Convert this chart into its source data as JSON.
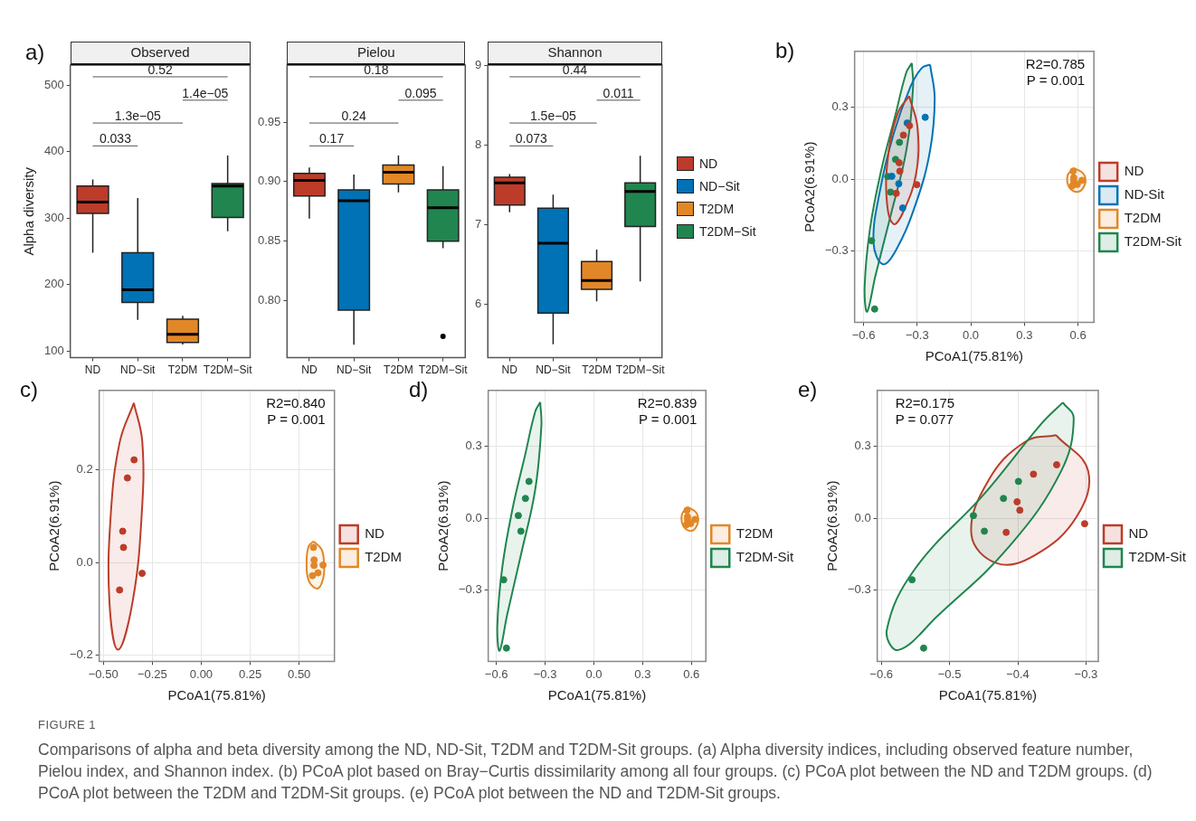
{
  "chart_data": [
    {
      "type": "box",
      "title": "Observed",
      "ylabel": "Alpha diversity",
      "categories": [
        "ND",
        "ND−Sit",
        "T2DM",
        "T2DM−Sit"
      ],
      "ylim": [
        90,
        530
      ],
      "yticks": [
        100,
        200,
        300,
        400,
        500
      ],
      "grid": false,
      "legend": false,
      "series": [
        {
          "color": "#bc3c29",
          "boxes": [
            {
              "low": 248,
              "q1": 307,
              "median": 324,
              "q3": 348,
              "high": 358
            },
            null,
            null,
            null
          ]
        },
        {
          "color": "#0072b5",
          "boxes": [
            null,
            {
              "low": 147,
              "q1": 173,
              "median": 192,
              "q3": 248,
              "high": 330
            },
            null,
            null
          ]
        },
        {
          "color": "#e18727",
          "boxes": [
            null,
            null,
            {
              "low": 110,
              "q1": 113,
              "median": 125,
              "q3": 148,
              "high": 153
            },
            null
          ]
        },
        {
          "color": "#20854e",
          "boxes": [
            null,
            null,
            null,
            {
              "low": 280,
              "q1": 301,
              "median": 348,
              "q3": 352,
              "high": 394
            }
          ]
        }
      ],
      "annotations": [
        "0.52",
        "1.4e−05",
        "1.3e−05",
        "0.033",
        "a)"
      ]
    },
    {
      "type": "box",
      "title": "Pielou",
      "categories": [
        "ND",
        "ND−Sit",
        "T2DM",
        "T2DM−Sit"
      ],
      "ylim": [
        0.752,
        0.998
      ],
      "yticks": [
        {
          "value": 0.8,
          "label": "0.80"
        },
        0.85,
        {
          "value": 0.9,
          "label": "0.90"
        },
        0.95
      ],
      "grid": false,
      "legend": false,
      "series": [
        {
          "color": "#bc3c29",
          "boxes": [
            {
              "low": 0.869,
              "q1": 0.888,
              "median": 0.901,
              "q3": 0.907,
              "high": 0.912
            },
            null,
            null,
            null
          ]
        },
        {
          "color": "#0072b5",
          "boxes": [
            null,
            {
              "low": 0.763,
              "q1": 0.792,
              "median": 0.884,
              "q3": 0.893,
              "high": 0.906
            },
            null,
            null
          ]
        },
        {
          "color": "#e18727",
          "boxes": [
            null,
            null,
            {
              "low": 0.891,
              "q1": 0.898,
              "median": 0.908,
              "q3": 0.914,
              "high": 0.922
            },
            null
          ]
        },
        {
          "color": "#20854e",
          "boxes": [
            null,
            null,
            null,
            {
              "low": 0.844,
              "q1": 0.85,
              "median": 0.878,
              "q3": 0.893,
              "high": 0.913,
              "outliers": [
                0.77
              ]
            }
          ]
        }
      ],
      "annotations": [
        "0.18",
        "0.095",
        "0.24",
        "0.17"
      ]
    },
    {
      "type": "box",
      "title": "Shannon",
      "categories": [
        "ND",
        "ND−Sit",
        "T2DM",
        "T2DM−Sit"
      ],
      "ylim": [
        5.33,
        9.01
      ],
      "yticks": [
        6,
        7,
        8,
        9
      ],
      "grid": false,
      "legend": "right",
      "series": [
        {
          "name": "ND",
          "color": "#bc3c29",
          "boxes": [
            {
              "low": 7.16,
              "q1": 7.25,
              "median": 7.53,
              "q3": 7.6,
              "high": 7.64
            },
            null,
            null,
            null
          ]
        },
        {
          "name": "ND−Sit",
          "color": "#0072b5",
          "boxes": [
            null,
            {
              "low": 5.5,
              "q1": 5.89,
              "median": 6.77,
              "q3": 7.21,
              "high": 7.38
            },
            null,
            null
          ]
        },
        {
          "name": "T2DM",
          "color": "#e18727",
          "boxes": [
            null,
            null,
            {
              "low": 6.04,
              "q1": 6.19,
              "median": 6.3,
              "q3": 6.54,
              "high": 6.69
            },
            null
          ]
        },
        {
          "name": "T2DM−Sit",
          "color": "#20854e",
          "boxes": [
            null,
            null,
            null,
            {
              "low": 6.29,
              "q1": 6.98,
              "median": 7.42,
              "q3": 7.53,
              "high": 7.87
            }
          ]
        }
      ],
      "annotations": [
        "0.44",
        "0.011",
        "1.5e−05",
        "0.073"
      ]
    },
    {
      "type": "scatter",
      "xlabel": "PCoA1(75.81%)",
      "ylabel": "PCoA2(6.91%)",
      "xlim": [
        -0.65,
        0.689
      ],
      "ylim": [
        -0.595,
        0.531
      ],
      "xticks": [
        {
          "value": -0.6,
          "label": "−0.6"
        },
        {
          "value": -0.3,
          "label": "−0.3"
        },
        {
          "value": 0,
          "label": "0.0"
        },
        0.3,
        0.6
      ],
      "yticks": [
        {
          "value": -0.3,
          "label": "−0.3"
        },
        {
          "value": 0,
          "label": "0.0"
        },
        0.3
      ],
      "grid": true,
      "legend": "right",
      "marker": "circle",
      "series": [
        {
          "name": "ND",
          "color": "#bc3c29",
          "x": [
            -0.343,
            -0.377,
            -0.401,
            -0.397,
            -0.302,
            -0.417
          ],
          "values": [
            0.222,
            0.183,
            0.068,
            0.033,
            -0.023,
            -0.059
          ]
        },
        {
          "name": "ND-Sit",
          "color": "#0072b5",
          "x": [
            -0.255,
            -0.356,
            -0.442,
            -0.403,
            -0.381
          ],
          "values": [
            0.257,
            0.233,
            0.012,
            -0.019,
            -0.12
          ]
        },
        {
          "name": "T2DM",
          "color": "#e18727",
          "x": [
            0.573,
            0.576,
            0.576,
            0.622,
            0.596,
            0.568
          ],
          "values": [
            0.033,
            0.006,
            -0.006,
            -0.005,
            -0.022,
            -0.028
          ]
        },
        {
          "name": "T2DM-Sit",
          "color": "#20854e",
          "x": [
            -0.399,
            -0.421,
            -0.465,
            -0.449,
            -0.555,
            -0.538
          ],
          "values": [
            0.153,
            0.082,
            0.011,
            -0.054,
            -0.256,
            -0.54
          ]
        },
        {
          "type": "area",
          "color": "#bc3c29",
          "x": [
            -0.345,
            -0.298,
            -0.306,
            -0.377,
            -0.431,
            -0.469,
            -0.463,
            -0.408,
            -0.345
          ],
          "values": [
            0.345,
            0.214,
            0.022,
            -0.135,
            -0.187,
            -0.099,
            0.094,
            0.275,
            0.345
          ],
          "marker": "none"
        },
        {
          "type": "area",
          "color": "#0072b5",
          "x": [
            -0.228,
            -0.202,
            -0.228,
            -0.306,
            -0.416,
            -0.491,
            -0.544,
            -0.509,
            -0.431,
            -0.338,
            -0.275,
            -0.228
          ],
          "values": [
            0.476,
            0.335,
            0.118,
            -0.099,
            -0.292,
            -0.354,
            -0.267,
            -0.051,
            0.19,
            0.383,
            0.461,
            0.476
          ],
          "marker": "none"
        },
        {
          "type": "area",
          "color": "#e18727",
          "x": [
            0.577,
            0.631,
            0.639,
            0.6,
            0.55,
            0.542,
            0.577
          ],
          "values": [
            0.046,
            0.022,
            -0.02,
            -0.053,
            -0.033,
            0.016,
            0.046
          ],
          "marker": "none"
        },
        {
          "type": "area",
          "color": "#20854e",
          "x": [
            -0.33,
            -0.323,
            -0.361,
            -0.447,
            -0.533,
            -0.58,
            -0.594,
            -0.564,
            -0.502,
            -0.423,
            -0.361,
            -0.33
          ],
          "values": [
            0.482,
            0.383,
            0.118,
            -0.147,
            -0.4,
            -0.551,
            -0.448,
            -0.207,
            0.034,
            0.263,
            0.443,
            0.482
          ],
          "marker": "none"
        }
      ],
      "annotations": [
        "b)",
        "R2=0.785",
        "P = 0.001"
      ]
    },
    {
      "type": "scatter",
      "xlabel": "PCoA1(75.81%)",
      "ylabel": "PCoA2(6.91%)",
      "xlim": [
        -0.521,
        0.68
      ],
      "ylim": [
        -0.213,
        0.372
      ],
      "xticks": [
        {
          "value": -0.5,
          "label": "−0.50"
        },
        {
          "value": -0.25,
          "label": "−0.25"
        },
        {
          "value": 0,
          "label": "0.00"
        },
        0.25,
        {
          "value": 0.5,
          "label": "0.50"
        }
      ],
      "yticks": [
        {
          "value": -0.2,
          "label": "−0.2"
        },
        {
          "value": 0,
          "label": "0.0"
        },
        0.2
      ],
      "grid": true,
      "legend": "right",
      "marker": "circle",
      "series": [
        {
          "name": "ND",
          "color": "#bc3c29",
          "x": [
            -0.343,
            -0.377,
            -0.401,
            -0.397,
            -0.302,
            -0.417
          ],
          "values": [
            0.222,
            0.183,
            0.068,
            0.033,
            -0.023,
            -0.059
          ]
        },
        {
          "name": "T2DM",
          "color": "#e18727",
          "x": [
            0.573,
            0.576,
            0.576,
            0.622,
            0.596,
            0.568
          ],
          "values": [
            0.033,
            0.006,
            -0.006,
            -0.005,
            -0.022,
            -0.028
          ]
        },
        {
          "type": "area",
          "color": "#bc3c29",
          "x": [
            -0.344,
            -0.301,
            -0.304,
            -0.35,
            -0.425,
            -0.469,
            -0.462,
            -0.416,
            -0.344
          ],
          "values": [
            0.345,
            0.261,
            0.104,
            -0.083,
            -0.188,
            -0.083,
            0.104,
            0.261,
            0.345
          ],
          "marker": "none"
        },
        {
          "type": "area",
          "color": "#e18727",
          "x": [
            0.573,
            0.614,
            0.627,
            0.623,
            0.594,
            0.549,
            0.538,
            0.549,
            0.573
          ],
          "values": [
            0.046,
            0.029,
            -0.002,
            -0.033,
            -0.056,
            -0.039,
            0.004,
            0.036,
            0.046
          ],
          "marker": "none"
        }
      ],
      "annotations": [
        "c)",
        "R2=0.840",
        "P = 0.001"
      ]
    },
    {
      "type": "scatter",
      "xlabel": "PCoA1(75.81%)",
      "ylabel": "PCoA2(6.91%)",
      "xlim": [
        -0.65,
        0.689
      ],
      "ylim": [
        -0.595,
        0.531
      ],
      "xticks": [
        {
          "value": -0.6,
          "label": "−0.6"
        },
        {
          "value": -0.3,
          "label": "−0.3"
        },
        {
          "value": 0,
          "label": "0.0"
        },
        0.3,
        0.6
      ],
      "yticks": [
        {
          "value": -0.3,
          "label": "−0.3"
        },
        {
          "value": 0,
          "label": "0.0"
        },
        0.3
      ],
      "grid": true,
      "legend": "right",
      "marker": "circle",
      "series": [
        {
          "name": "T2DM",
          "color": "#e18727",
          "x": [
            0.573,
            0.576,
            0.576,
            0.622,
            0.596,
            0.568
          ],
          "values": [
            0.033,
            0.006,
            -0.006,
            -0.005,
            -0.022,
            -0.028
          ]
        },
        {
          "name": "T2DM-Sit",
          "color": "#20854e",
          "x": [
            -0.399,
            -0.421,
            -0.465,
            -0.449,
            -0.555,
            -0.538
          ],
          "values": [
            0.153,
            0.082,
            0.011,
            -0.054,
            -0.256,
            -0.54
          ]
        },
        {
          "type": "area",
          "color": "#e18727",
          "x": [
            0.577,
            0.631,
            0.639,
            0.6,
            0.55,
            0.542,
            0.577
          ],
          "values": [
            0.046,
            0.022,
            -0.02,
            -0.053,
            -0.033,
            0.016,
            0.046
          ],
          "marker": "none"
        },
        {
          "type": "area",
          "color": "#20854e",
          "x": [
            -0.33,
            -0.323,
            -0.361,
            -0.447,
            -0.533,
            -0.58,
            -0.594,
            -0.564,
            -0.502,
            -0.423,
            -0.361,
            -0.33
          ],
          "values": [
            0.482,
            0.383,
            0.118,
            -0.147,
            -0.4,
            -0.551,
            -0.448,
            -0.207,
            0.034,
            0.263,
            0.443,
            0.482
          ],
          "marker": "none"
        }
      ],
      "annotations": [
        "d)",
        "R2=0.839",
        "P = 0.001"
      ]
    },
    {
      "type": "scatter",
      "xlabel": "PCoA1(75.81%)",
      "ylabel": "PCoA2(6.91%)",
      "xlim": [
        -0.606,
        -0.282
      ],
      "ylim": [
        -0.595,
        0.531
      ],
      "xticks": [
        {
          "value": -0.6,
          "label": "−0.6"
        },
        {
          "value": -0.5,
          "label": "−0.5"
        },
        {
          "value": -0.4,
          "label": "−0.4"
        },
        {
          "value": -0.3,
          "label": "−0.3"
        }
      ],
      "yticks": [
        {
          "value": -0.3,
          "label": "−0.3"
        },
        {
          "value": 0,
          "label": "0.0"
        },
        0.3
      ],
      "grid": true,
      "legend": "right",
      "marker": "circle",
      "series": [
        {
          "name": "ND",
          "color": "#bc3c29",
          "x": [
            -0.343,
            -0.377,
            -0.401,
            -0.397,
            -0.302,
            -0.417
          ],
          "values": [
            0.222,
            0.183,
            0.068,
            0.033,
            -0.023,
            -0.059
          ]
        },
        {
          "name": "T2DM-Sit",
          "color": "#20854e",
          "x": [
            -0.399,
            -0.421,
            -0.465,
            -0.449,
            -0.555,
            -0.538
          ],
          "values": [
            0.153,
            0.082,
            0.011,
            -0.054,
            -0.256,
            -0.54
          ]
        },
        {
          "type": "area",
          "color": "#20854e",
          "x": [
            -0.334,
            -0.318,
            -0.336,
            -0.412,
            -0.517,
            -0.575,
            -0.592,
            -0.551,
            -0.449,
            -0.366,
            -0.334
          ],
          "values": [
            0.481,
            0.415,
            0.198,
            -0.116,
            -0.405,
            -0.548,
            -0.465,
            -0.212,
            0.101,
            0.391,
            0.481
          ],
          "marker": "none"
        },
        {
          "type": "area",
          "color": "#bc3c29",
          "x": [
            -0.344,
            -0.297,
            -0.314,
            -0.374,
            -0.43,
            -0.468,
            -0.442,
            -0.389,
            -0.344
          ],
          "values": [
            0.345,
            0.198,
            0.005,
            -0.152,
            -0.188,
            -0.068,
            0.162,
            0.318,
            0.345
          ],
          "marker": "none"
        }
      ],
      "annotations": [
        "e)",
        "R2=0.175",
        "P = 0.077",
        "FIGURE 1",
        "Comparisons of alpha and beta diversity among the ND, ND-Sit, T2DM and T2DM-Sit groups. (a) Alpha diversity indices, including observed feature number, Pielou index, and Shannon index. (b) PCoA plot based on Bray−Curtis dissimilarity among all four groups. (c) PCoA plot between the ND and T2DM groups. (d) PCoA plot between the T2DM and T2DM-Sit groups. (e) PCoA plot between the ND and T2DM-Sit groups."
      ]
    }
  ]
}
